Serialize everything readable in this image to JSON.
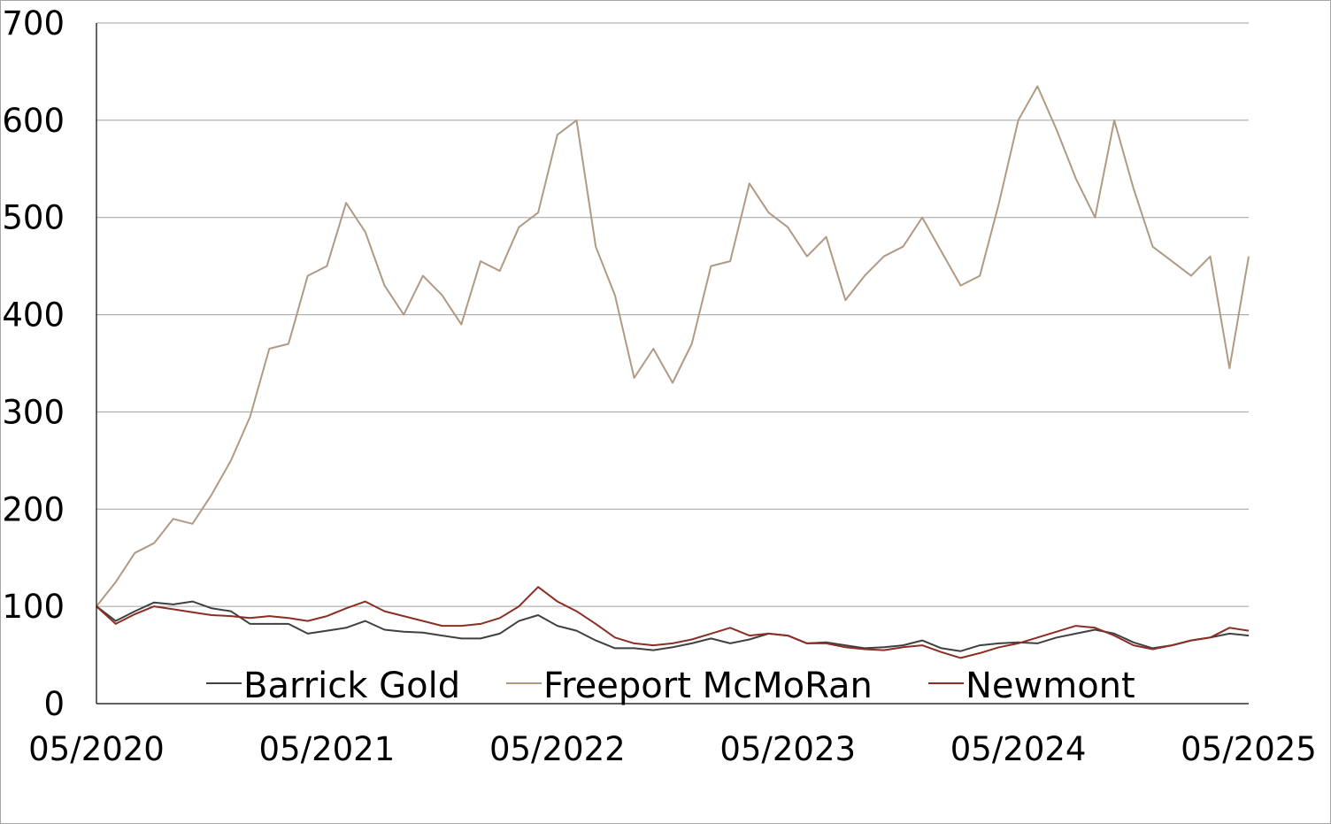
{
  "chart_data": {
    "type": "line",
    "title": "",
    "xlabel": "",
    "ylabel": "",
    "x_range": [
      "2020-05",
      "2025-05"
    ],
    "x_ticks": [
      "05/2020",
      "05/2021",
      "05/2022",
      "05/2023",
      "05/2024",
      "05/2025"
    ],
    "ylim": [
      0,
      700
    ],
    "y_ticks": [
      "0",
      "100",
      "200",
      "300",
      "400",
      "500",
      "600",
      "700"
    ],
    "grid": "horizontal",
    "legend_position": "bottom",
    "legend": [
      "Barrick Gold",
      "Freeport McMoRan",
      "Newmont"
    ],
    "series": [
      {
        "name": "Barrick Gold",
        "color": "#404040",
        "points": [
          [
            "2020-05",
            100
          ],
          [
            "2020-06",
            85
          ],
          [
            "2020-07",
            95
          ],
          [
            "2020-08",
            104
          ],
          [
            "2020-09",
            102
          ],
          [
            "2020-10",
            105
          ],
          [
            "2020-11",
            98
          ],
          [
            "2020-12",
            95
          ],
          [
            "2021-01",
            82
          ],
          [
            "2021-02",
            82
          ],
          [
            "2021-03",
            82
          ],
          [
            "2021-04",
            72
          ],
          [
            "2021-05",
            75
          ],
          [
            "2021-06",
            78
          ],
          [
            "2021-07",
            85
          ],
          [
            "2021-08",
            76
          ],
          [
            "2021-09",
            74
          ],
          [
            "2021-10",
            73
          ],
          [
            "2021-11",
            70
          ],
          [
            "2021-12",
            67
          ],
          [
            "2022-01",
            67
          ],
          [
            "2022-02",
            72
          ],
          [
            "2022-03",
            85
          ],
          [
            "2022-04",
            91
          ],
          [
            "2022-05",
            80
          ],
          [
            "2022-06",
            75
          ],
          [
            "2022-07",
            65
          ],
          [
            "2022-08",
            57
          ],
          [
            "2022-09",
            57
          ],
          [
            "2022-10",
            55
          ],
          [
            "2022-11",
            58
          ],
          [
            "2022-12",
            62
          ],
          [
            "2023-01",
            67
          ],
          [
            "2023-02",
            62
          ],
          [
            "2023-03",
            66
          ],
          [
            "2023-04",
            72
          ],
          [
            "2023-05",
            70
          ],
          [
            "2023-06",
            62
          ],
          [
            "2023-07",
            63
          ],
          [
            "2023-08",
            60
          ],
          [
            "2023-09",
            57
          ],
          [
            "2023-10",
            58
          ],
          [
            "2023-11",
            60
          ],
          [
            "2023-12",
            65
          ],
          [
            "2024-01",
            57
          ],
          [
            "2024-02",
            54
          ],
          [
            "2024-03",
            60
          ],
          [
            "2024-04",
            62
          ],
          [
            "2024-05",
            63
          ],
          [
            "2024-06",
            62
          ],
          [
            "2024-07",
            68
          ],
          [
            "2024-08",
            72
          ],
          [
            "2024-09",
            76
          ],
          [
            "2024-10",
            72
          ],
          [
            "2024-11",
            63
          ],
          [
            "2024-12",
            57
          ],
          [
            "2025-01",
            60
          ],
          [
            "2025-02",
            65
          ],
          [
            "2025-03",
            68
          ],
          [
            "2025-04",
            72
          ],
          [
            "2025-05",
            70
          ]
        ]
      },
      {
        "name": "Freeport McMoRan",
        "color": "#b09a84",
        "points": [
          [
            "2020-05",
            100
          ],
          [
            "2020-06",
            125
          ],
          [
            "2020-07",
            155
          ],
          [
            "2020-08",
            165
          ],
          [
            "2020-09",
            190
          ],
          [
            "2020-10",
            185
          ],
          [
            "2020-11",
            215
          ],
          [
            "2020-12",
            250
          ],
          [
            "2021-01",
            295
          ],
          [
            "2021-02",
            365
          ],
          [
            "2021-03",
            370
          ],
          [
            "2021-04",
            440
          ],
          [
            "2021-05",
            450
          ],
          [
            "2021-06",
            515
          ],
          [
            "2021-07",
            485
          ],
          [
            "2021-08",
            430
          ],
          [
            "2021-09",
            400
          ],
          [
            "2021-10",
            440
          ],
          [
            "2021-11",
            420
          ],
          [
            "2021-12",
            390
          ],
          [
            "2022-01",
            455
          ],
          [
            "2022-02",
            445
          ],
          [
            "2022-03",
            490
          ],
          [
            "2022-04",
            505
          ],
          [
            "2022-05",
            585
          ],
          [
            "2022-06",
            600
          ],
          [
            "2022-07",
            470
          ],
          [
            "2022-08",
            420
          ],
          [
            "2022-09",
            335
          ],
          [
            "2022-10",
            365
          ],
          [
            "2022-11",
            330
          ],
          [
            "2022-12",
            370
          ],
          [
            "2023-01",
            450
          ],
          [
            "2023-02",
            455
          ],
          [
            "2023-03",
            535
          ],
          [
            "2023-04",
            505
          ],
          [
            "2023-05",
            490
          ],
          [
            "2023-06",
            460
          ],
          [
            "2023-07",
            480
          ],
          [
            "2023-08",
            415
          ],
          [
            "2023-09",
            440
          ],
          [
            "2023-10",
            460
          ],
          [
            "2023-11",
            470
          ],
          [
            "2023-12",
            500
          ],
          [
            "2024-01",
            465
          ],
          [
            "2024-02",
            430
          ],
          [
            "2024-03",
            440
          ],
          [
            "2024-04",
            515
          ],
          [
            "2024-05",
            600
          ],
          [
            "2024-06",
            635
          ],
          [
            "2024-07",
            590
          ],
          [
            "2024-08",
            540
          ],
          [
            "2024-09",
            500
          ],
          [
            "2024-10",
            600
          ],
          [
            "2024-11",
            530
          ],
          [
            "2024-12",
            470
          ],
          [
            "2025-01",
            455
          ],
          [
            "2025-02",
            440
          ],
          [
            "2025-03",
            460
          ],
          [
            "2025-04",
            345
          ],
          [
            "2025-05",
            460
          ]
        ]
      },
      {
        "name": "Newmont",
        "color": "#8b2e24",
        "points": [
          [
            "2020-05",
            100
          ],
          [
            "2020-06",
            82
          ],
          [
            "2020-07",
            92
          ],
          [
            "2020-08",
            100
          ],
          [
            "2020-09",
            97
          ],
          [
            "2020-10",
            94
          ],
          [
            "2020-11",
            91
          ],
          [
            "2020-12",
            90
          ],
          [
            "2021-01",
            88
          ],
          [
            "2021-02",
            90
          ],
          [
            "2021-03",
            88
          ],
          [
            "2021-04",
            85
          ],
          [
            "2021-05",
            90
          ],
          [
            "2021-06",
            98
          ],
          [
            "2021-07",
            105
          ],
          [
            "2021-08",
            95
          ],
          [
            "2021-09",
            90
          ],
          [
            "2021-10",
            85
          ],
          [
            "2021-11",
            80
          ],
          [
            "2021-12",
            80
          ],
          [
            "2022-01",
            82
          ],
          [
            "2022-02",
            88
          ],
          [
            "2022-03",
            100
          ],
          [
            "2022-04",
            120
          ],
          [
            "2022-05",
            105
          ],
          [
            "2022-06",
            95
          ],
          [
            "2022-07",
            82
          ],
          [
            "2022-08",
            68
          ],
          [
            "2022-09",
            62
          ],
          [
            "2022-10",
            60
          ],
          [
            "2022-11",
            62
          ],
          [
            "2022-12",
            66
          ],
          [
            "2023-01",
            72
          ],
          [
            "2023-02",
            78
          ],
          [
            "2023-03",
            70
          ],
          [
            "2023-04",
            72
          ],
          [
            "2023-05",
            70
          ],
          [
            "2023-06",
            62
          ],
          [
            "2023-07",
            62
          ],
          [
            "2023-08",
            58
          ],
          [
            "2023-09",
            56
          ],
          [
            "2023-10",
            55
          ],
          [
            "2023-11",
            58
          ],
          [
            "2023-12",
            60
          ],
          [
            "2024-01",
            53
          ],
          [
            "2024-02",
            47
          ],
          [
            "2024-03",
            52
          ],
          [
            "2024-04",
            58
          ],
          [
            "2024-05",
            62
          ],
          [
            "2024-06",
            68
          ],
          [
            "2024-07",
            74
          ],
          [
            "2024-08",
            80
          ],
          [
            "2024-09",
            78
          ],
          [
            "2024-10",
            70
          ],
          [
            "2024-11",
            60
          ],
          [
            "2024-12",
            56
          ],
          [
            "2025-01",
            60
          ],
          [
            "2025-02",
            65
          ],
          [
            "2025-03",
            68
          ],
          [
            "2025-04",
            78
          ],
          [
            "2025-05",
            75
          ]
        ]
      }
    ]
  }
}
